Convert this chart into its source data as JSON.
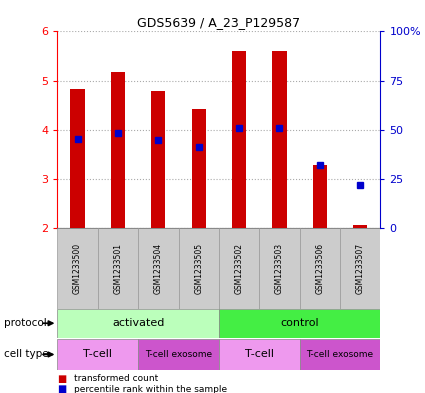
{
  "title": "GDS5639 / A_23_P129587",
  "samples": [
    "GSM1233500",
    "GSM1233501",
    "GSM1233504",
    "GSM1233505",
    "GSM1233502",
    "GSM1233503",
    "GSM1233506",
    "GSM1233507"
  ],
  "red_values": [
    4.83,
    5.18,
    4.78,
    4.43,
    5.6,
    5.6,
    3.28,
    2.05
  ],
  "blue_values": [
    3.82,
    3.94,
    3.8,
    3.65,
    4.04,
    4.04,
    3.28,
    2.88
  ],
  "ylim": [
    2,
    6
  ],
  "yticks_left": [
    2,
    3,
    4,
    5,
    6
  ],
  "yticks_right": [
    0,
    25,
    50,
    75,
    100
  ],
  "protocol_groups": [
    {
      "label": "activated",
      "start": 0,
      "end": 4,
      "color": "#bbffbb"
    },
    {
      "label": "control",
      "start": 4,
      "end": 8,
      "color": "#44ee44"
    }
  ],
  "celltype_groups": [
    {
      "label": "T-cell",
      "start": 0,
      "end": 2,
      "color": "#ee99ee"
    },
    {
      "label": "T-cell exosome",
      "start": 2,
      "end": 4,
      "color": "#cc55cc"
    },
    {
      "label": "T-cell",
      "start": 4,
      "end": 6,
      "color": "#ee99ee"
    },
    {
      "label": "T-cell exosome",
      "start": 6,
      "end": 8,
      "color": "#cc55cc"
    }
  ],
  "red_color": "#cc0000",
  "blue_color": "#0000cc",
  "bar_width": 0.35,
  "base_value": 2.0,
  "grid_color": "#aaaaaa",
  "label_protocol": "protocol",
  "label_celltype": "cell type",
  "legend_red": "transformed count",
  "legend_blue": "percentile rank within the sample",
  "sample_bg": "#cccccc"
}
